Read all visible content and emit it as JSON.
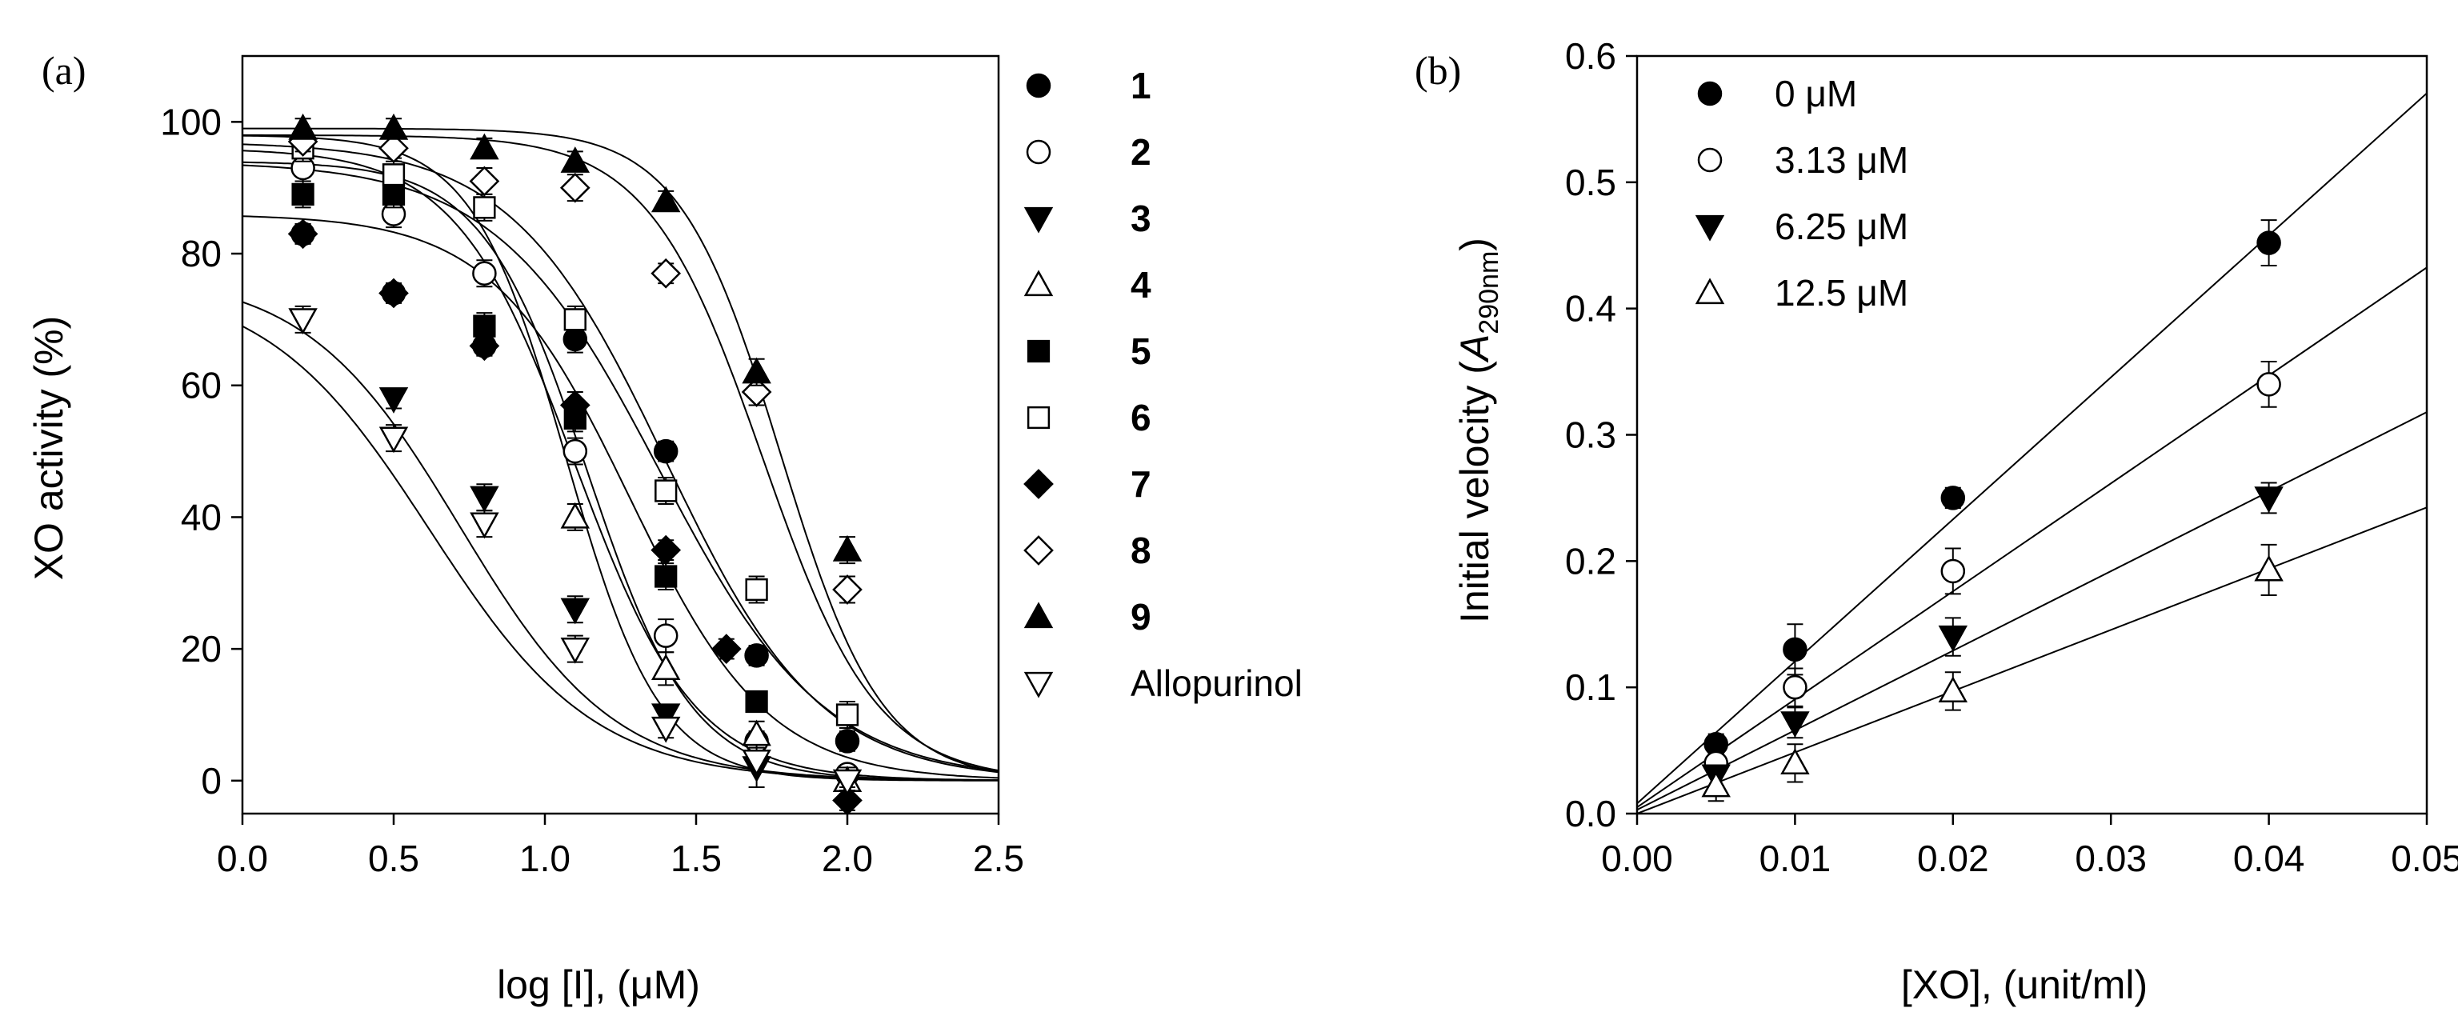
{
  "chart_data": [
    {
      "panel_label": "(a)",
      "type": "scatter",
      "xlabel": "log [I], (μM)",
      "ylabel": "XO activity (%)",
      "xlim": [
        0.0,
        2.5
      ],
      "ylim": [
        -5,
        110
      ],
      "xticks": [
        0.0,
        0.5,
        1.0,
        1.5,
        2.0,
        2.5
      ],
      "xtick_labels": [
        "0.0",
        "0.5",
        "1.0",
        "1.5",
        "2.0",
        "2.5"
      ],
      "yticks": [
        0,
        20,
        40,
        60,
        80,
        100
      ],
      "ytick_labels": [
        "0",
        "20",
        "40",
        "60",
        "80",
        "100"
      ],
      "legend_position": "right outside",
      "fit": "sigmoid (four-parameter logistic)",
      "series": [
        {
          "name": "1",
          "marker": "circle",
          "filled": true,
          "bold": true,
          "x": [
            0.2,
            0.5,
            0.8,
            1.1,
            1.4,
            1.7,
            2.0
          ],
          "y": [
            83,
            74,
            66,
            67,
            50,
            19,
            6
          ],
          "err": [
            1.5,
            1.5,
            1.5,
            2,
            1.5,
            1.5,
            1.5
          ],
          "fit_params": {
            "top": 94,
            "bottom": 0,
            "logic50": 1.38,
            "hill": 1.6
          }
        },
        {
          "name": "2",
          "marker": "circle",
          "filled": false,
          "bold": true,
          "x": [
            0.2,
            0.5,
            0.8,
            1.1,
            1.4,
            1.7,
            2.0
          ],
          "y": [
            93,
            86,
            77,
            50,
            22,
            6,
            1
          ],
          "err": [
            2,
            2,
            2,
            2,
            2.5,
            1.5,
            1
          ],
          "fit_params": {
            "top": 96,
            "bottom": 0,
            "logic50": 1.1,
            "hill": 2.2
          }
        },
        {
          "name": "3",
          "marker": "triangle-down",
          "filled": true,
          "bold": true,
          "x": [
            0.5,
            0.8,
            1.1,
            1.4,
            1.7
          ],
          "y": [
            58,
            43,
            26,
            10,
            2
          ],
          "err": [
            1.5,
            2,
            2,
            1.5,
            3
          ],
          "fit_params": {
            "top": 77,
            "bottom": 0,
            "logic50": 0.72,
            "hill": 1.7
          }
        },
        {
          "name": "4",
          "marker": "triangle-up",
          "filled": false,
          "bold": true,
          "x": [
            1.1,
            1.4,
            1.7,
            2.0
          ],
          "y": [
            40,
            17,
            7,
            0
          ],
          "err": [
            2,
            2.5,
            2,
            2
          ],
          "fit_params": {
            "top": 98,
            "bottom": 0,
            "logic50": 1.07,
            "hill": 2.8
          }
        },
        {
          "name": "5",
          "marker": "square",
          "filled": true,
          "bold": true,
          "x": [
            0.2,
            0.5,
            0.8,
            1.1,
            1.4,
            1.7
          ],
          "y": [
            89,
            89,
            69,
            55,
            31,
            12
          ],
          "err": [
            2,
            2,
            2,
            2,
            2,
            1.5
          ],
          "fit_params": {
            "top": 94,
            "bottom": 0,
            "logic50": 1.14,
            "hill": 2.5
          }
        },
        {
          "name": "6",
          "marker": "square",
          "filled": false,
          "bold": true,
          "x": [
            0.2,
            0.5,
            0.8,
            1.1,
            1.4,
            1.7,
            2.0
          ],
          "y": [
            96,
            92,
            87,
            70,
            44,
            29,
            10
          ],
          "err": [
            2,
            2,
            2,
            2,
            2,
            2,
            2
          ],
          "fit_params": {
            "top": 97,
            "bottom": 0,
            "logic50": 1.4,
            "hill": 1.7
          }
        },
        {
          "name": "7",
          "marker": "diamond",
          "filled": true,
          "bold": true,
          "x": [
            0.2,
            0.5,
            0.8,
            1.1,
            1.4,
            1.6,
            2.0
          ],
          "y": [
            83,
            74,
            66,
            57,
            35,
            20,
            -3
          ],
          "err": [
            1.5,
            1.5,
            1.5,
            2,
            1.5,
            1.5,
            1.5
          ],
          "fit_params": {
            "top": 86,
            "bottom": 0,
            "logic50": 1.28,
            "hill": 1.9
          }
        },
        {
          "name": "8",
          "marker": "diamond",
          "filled": false,
          "bold": true,
          "x": [
            0.2,
            0.5,
            0.8,
            1.1,
            1.4,
            1.7,
            2.0
          ],
          "y": [
            97,
            96,
            91,
            90,
            77,
            59,
            29
          ],
          "err": [
            1.5,
            1.5,
            2,
            2,
            1.5,
            2,
            2
          ],
          "fit_params": {
            "top": 98,
            "bottom": 0,
            "logic50": 1.72,
            "hill": 2.3
          }
        },
        {
          "name": "9",
          "marker": "triangle-up",
          "filled": true,
          "bold": true,
          "x": [
            0.2,
            0.5,
            0.8,
            1.1,
            1.4,
            1.7,
            2.0
          ],
          "y": [
            99,
            99,
            96,
            94,
            88,
            62,
            35
          ],
          "err": [
            1.5,
            1.5,
            1.5,
            1.5,
            1.5,
            2,
            2
          ],
          "fit_params": {
            "top": 99,
            "bottom": 0,
            "logic50": 1.78,
            "hill": 2.6
          }
        },
        {
          "name": "Allopurinol",
          "marker": "triangle-down",
          "filled": false,
          "bold": false,
          "x": [
            0.2,
            0.5,
            0.8,
            1.1,
            1.4,
            1.7,
            2.0
          ],
          "y": [
            70,
            52,
            39,
            20,
            8,
            3,
            0
          ],
          "err": [
            2,
            2,
            2,
            2,
            1.5,
            1.5,
            1
          ],
          "fit_params": {
            "top": 76,
            "bottom": 0,
            "logic50": 0.62,
            "hill": 1.6
          }
        }
      ]
    },
    {
      "panel_label": "(b)",
      "type": "scatter",
      "xlabel": "[XO], (unit/ml)",
      "ylabel_prefix": "Initial velocity (",
      "ylabel_italic": "A",
      "ylabel_sub": "290nm",
      "ylabel_suffix": ")",
      "xlim": [
        0.0,
        0.05
      ],
      "ylim": [
        0.0,
        0.6
      ],
      "xticks": [
        0.0,
        0.01,
        0.02,
        0.03,
        0.04,
        0.05
      ],
      "xtick_labels": [
        "0.00",
        "0.01",
        "0.02",
        "0.03",
        "0.04",
        "0.05"
      ],
      "yticks": [
        0.0,
        0.1,
        0.2,
        0.3,
        0.4,
        0.5,
        0.6
      ],
      "ytick_labels": [
        "0.0",
        "0.1",
        "0.2",
        "0.3",
        "0.4",
        "0.5",
        "0.6"
      ],
      "legend_position": "top-left inside",
      "fit": "linear",
      "series": [
        {
          "name": "0 μM",
          "marker": "circle",
          "filled": true,
          "x": [
            0.005,
            0.01,
            0.02,
            0.04
          ],
          "y": [
            0.055,
            0.13,
            0.25,
            0.452
          ],
          "err": [
            0.008,
            0.02,
            0.008,
            0.018
          ],
          "line": {
            "slope": 11.25,
            "intercept": 0.008
          }
        },
        {
          "name": "3.13 μM",
          "marker": "circle",
          "filled": false,
          "x": [
            0.005,
            0.01,
            0.02,
            0.04
          ],
          "y": [
            0.04,
            0.1,
            0.192,
            0.34
          ],
          "err": [
            0.008,
            0.015,
            0.018,
            0.018
          ],
          "line": {
            "slope": 8.55,
            "intercept": 0.005
          }
        },
        {
          "name": "6.25 μM",
          "marker": "triangle-down",
          "filled": true,
          "x": [
            0.005,
            0.01,
            0.02,
            0.04
          ],
          "y": [
            0.03,
            0.072,
            0.14,
            0.25
          ],
          "err": [
            0.008,
            0.012,
            0.015,
            0.012
          ],
          "line": {
            "slope": 6.3,
            "intercept": 0.003
          }
        },
        {
          "name": "12.5 μM",
          "marker": "triangle-up",
          "filled": false,
          "x": [
            0.005,
            0.01,
            0.02,
            0.04
          ],
          "y": [
            0.022,
            0.04,
            0.097,
            0.193
          ],
          "err": [
            0.012,
            0.015,
            0.015,
            0.02
          ],
          "line": {
            "slope": 4.85,
            "intercept": 0.0
          }
        }
      ]
    }
  ]
}
